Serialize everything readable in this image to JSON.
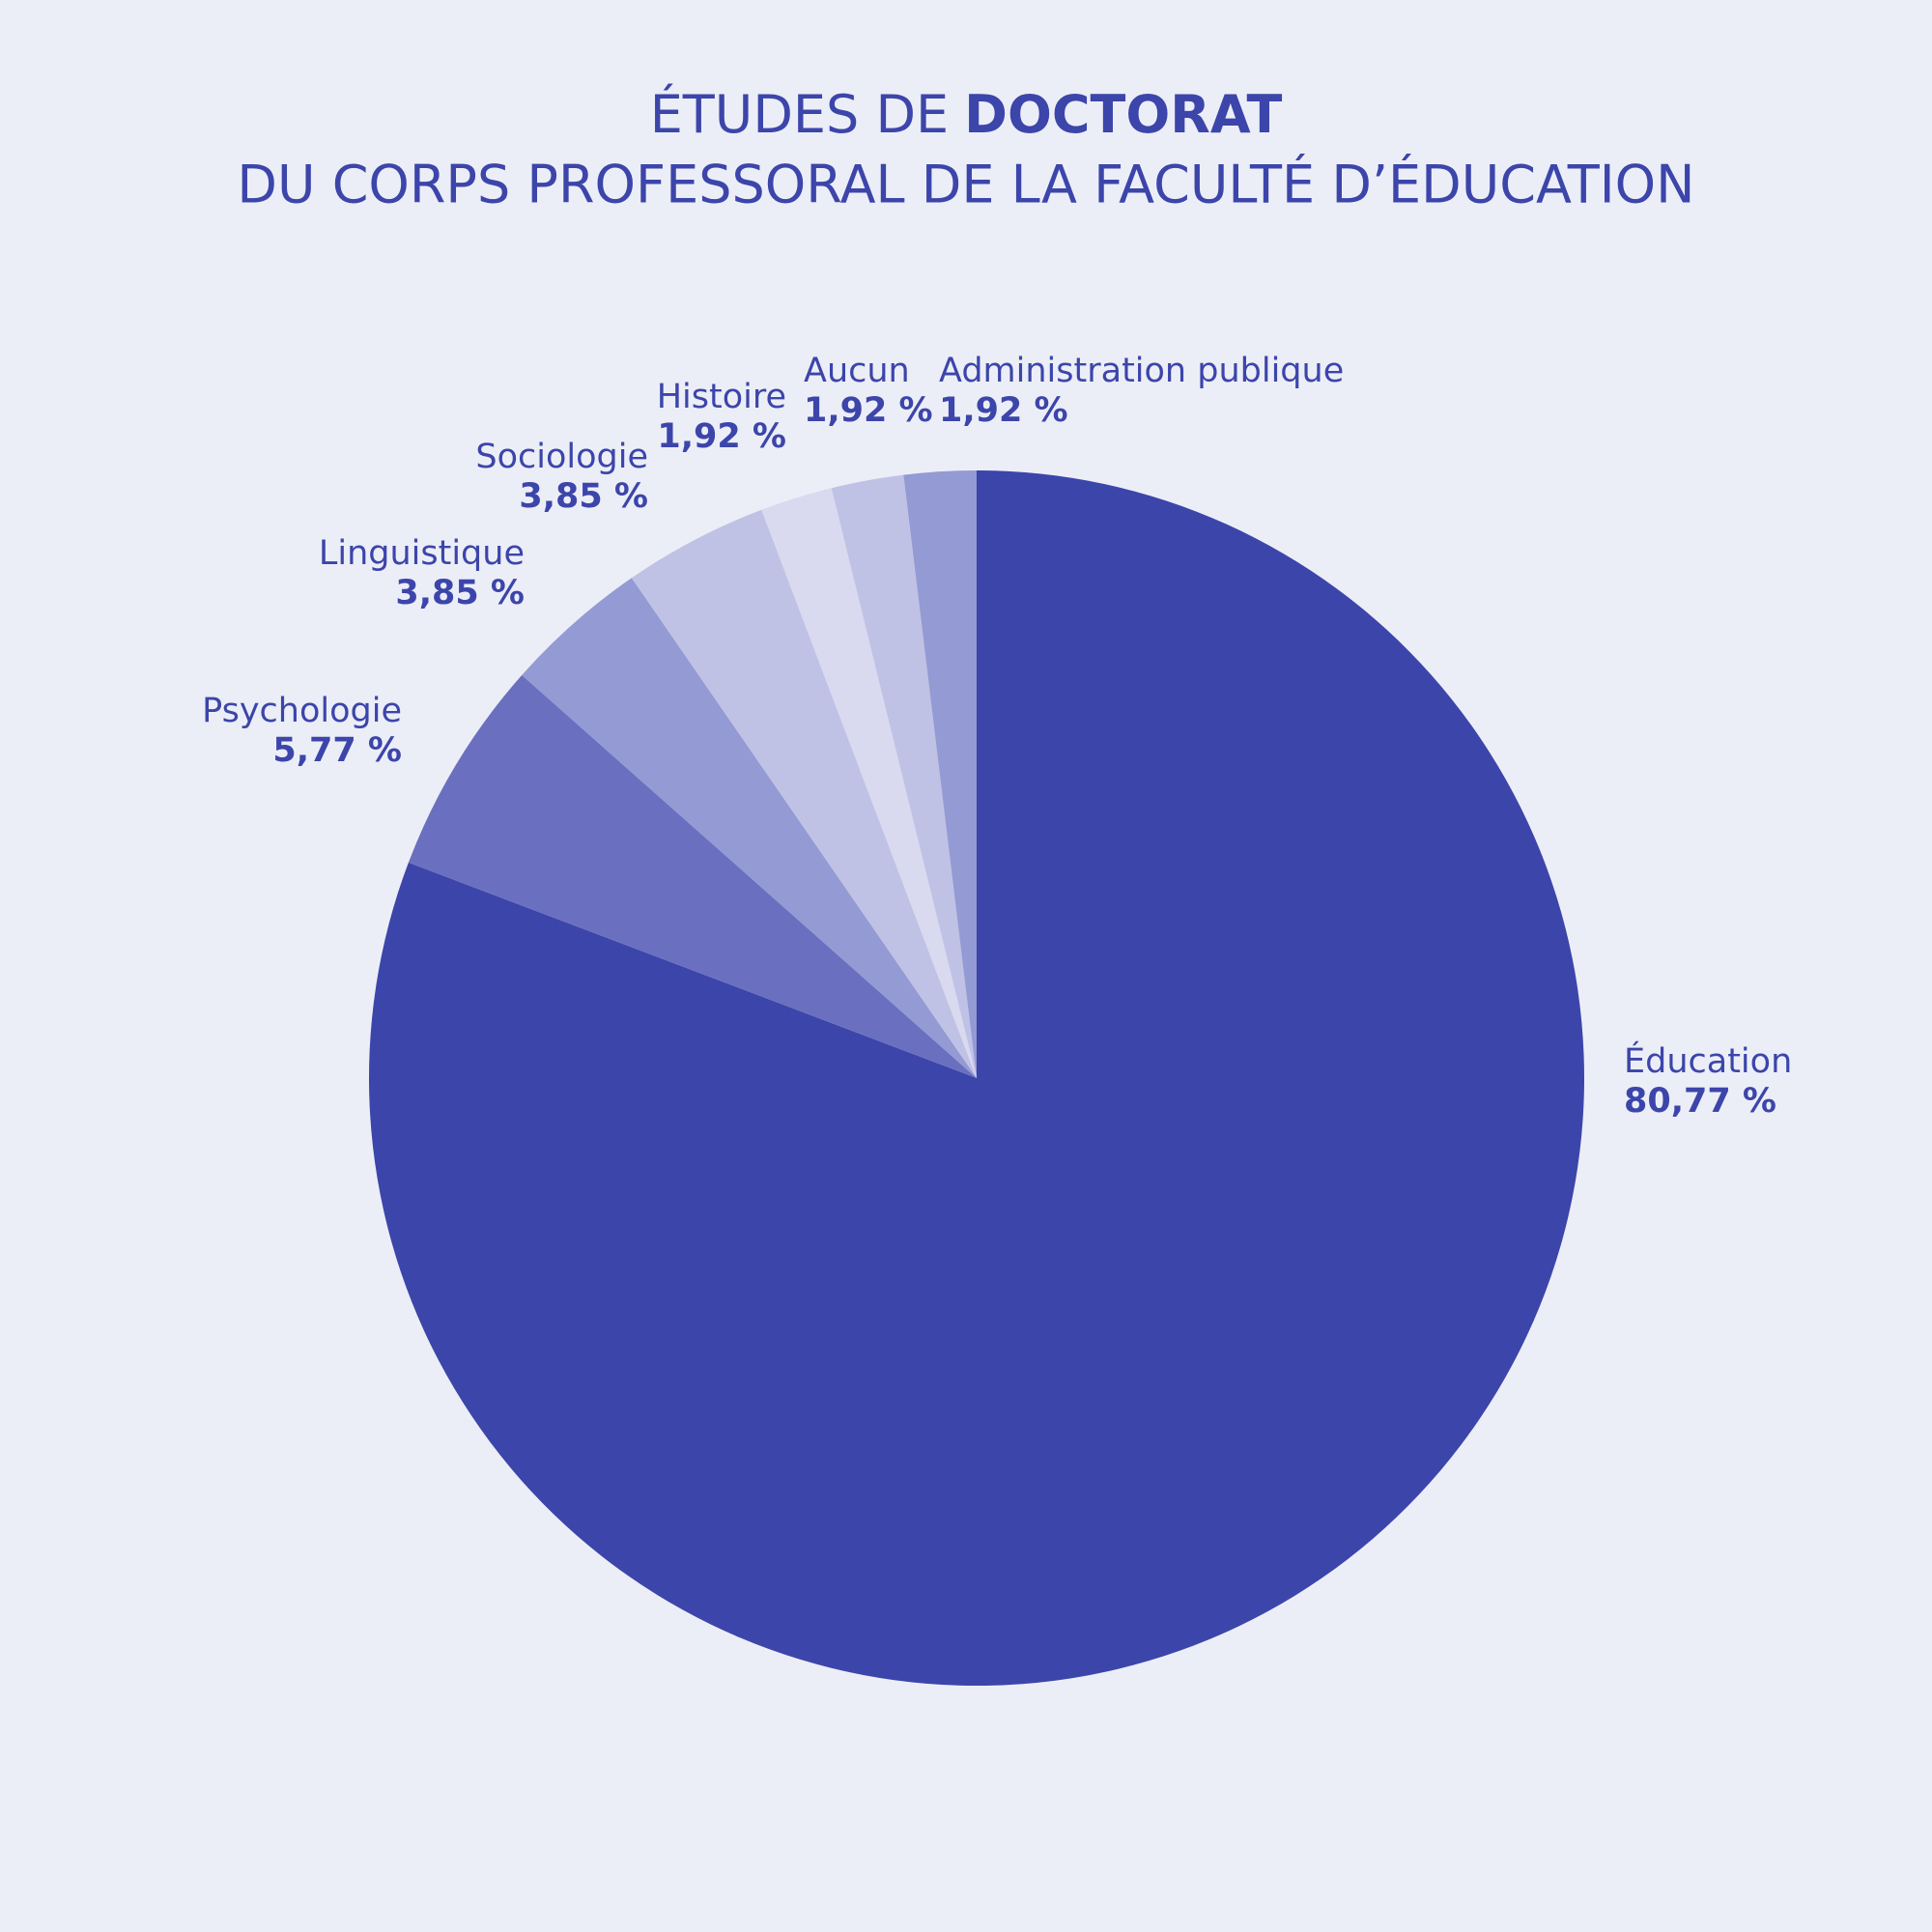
{
  "chart_data": {
    "type": "pie",
    "title": [
      "ÉTUDES DE",
      "DOCTORAT"
    ],
    "subtitle": "DU CORPS PROFESSORAL DE LA FACULTÉ D’ÉDUCATION",
    "categories": [
      "Éducation",
      "Psychologie",
      "Linguistique",
      "Sociologie",
      "Histoire",
      "Aucun",
      "Administration publique"
    ],
    "values": [
      80.77,
      5.77,
      3.85,
      3.85,
      1.92,
      1.92,
      1.92
    ],
    "value_labels": [
      "80,77 %",
      "5,77 %",
      "3,85 %",
      "3,85 %",
      "1,92 %",
      "1,92 %",
      "1,92 %"
    ],
    "colors": [
      "#3c45aa",
      "#6a70bf",
      "#949ad3",
      "#c0c2e5",
      "#d9daf0",
      "#c0c2e5",
      "#949ad3"
    ]
  }
}
